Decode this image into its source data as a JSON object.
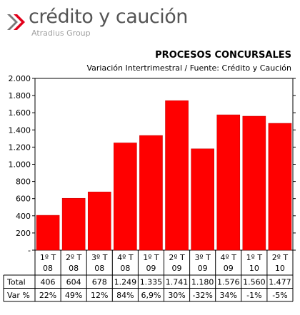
{
  "brand": {
    "name": "crédito y caución",
    "group": "Atradius Group",
    "colors": {
      "chevron_red": "#e2001a",
      "chevron_grey": "#7a7a7a",
      "text_grey": "#555555"
    }
  },
  "chart_data": {
    "type": "bar",
    "title": "PROCESOS CONCURSALES",
    "subtitle": "Variación Intertrimestral / Fuente: Crédito y Caución",
    "categories": [
      [
        "1º T",
        "08"
      ],
      [
        "2º T",
        "08"
      ],
      [
        "3º T",
        "08"
      ],
      [
        "4º T",
        "08"
      ],
      [
        "1º T",
        "09"
      ],
      [
        "2º T",
        "09"
      ],
      [
        "3º T",
        "09"
      ],
      [
        "4º T",
        "09"
      ],
      [
        "1º T",
        "10"
      ],
      [
        "2º T",
        "10"
      ]
    ],
    "values": [
      406,
      604,
      678,
      1249,
      1335,
      1741,
      1180,
      1576,
      1560,
      1477
    ],
    "ylim": [
      0,
      2000
    ],
    "yticks": [
      0,
      200,
      400,
      600,
      800,
      1000,
      1200,
      1400,
      1600,
      1800,
      2000
    ],
    "ytick_labels": [
      "-",
      "200",
      "400",
      "600",
      "800",
      "1.000",
      "1.200",
      "1.400",
      "1.600",
      "1.800",
      "2.000"
    ],
    "grid": false,
    "bar_color": "#ff0000",
    "table": {
      "rows": [
        {
          "label": "Total",
          "cells": [
            "406",
            "604",
            "678",
            "1.249",
            "1.335",
            "1.741",
            "1.180",
            "1.576",
            "1.560",
            "1.477"
          ]
        },
        {
          "label": "Var %",
          "cells": [
            "22%",
            "49%",
            "12%",
            "84%",
            "6,9%",
            "30%",
            "-32%",
            "34%",
            "-1%",
            "-5%"
          ]
        }
      ]
    }
  }
}
